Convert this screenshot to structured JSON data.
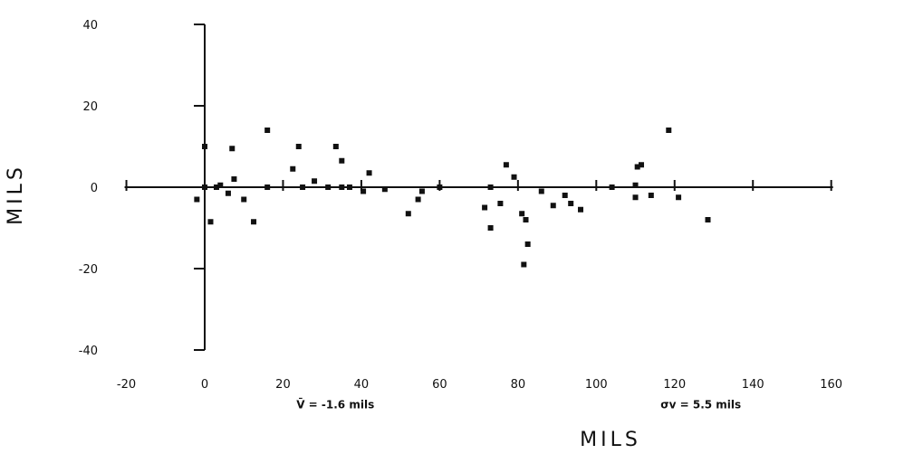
{
  "chart_data": {
    "type": "scatter",
    "xlabel": "MILS",
    "ylabel": "MILS",
    "xlim": [
      -20,
      160
    ],
    "ylim": [
      -40,
      40
    ],
    "xticks": [
      -20,
      0,
      20,
      40,
      60,
      80,
      100,
      120,
      140,
      160
    ],
    "xtick_labels": [
      "-20",
      "0",
      "20",
      "40",
      "60",
      "80",
      "100",
      "120",
      "140",
      "160"
    ],
    "yticks": [
      -40,
      -20,
      0,
      20,
      40
    ],
    "ytick_labels": [
      "-40",
      "-20",
      "0",
      "20",
      "40"
    ],
    "grid": false,
    "annotations": [
      {
        "text": "V̄ = -1.6 mils",
        "x": 10,
        "y": -47
      },
      {
        "text": "σv = 5.5 mils",
        "x": 103,
        "y": -47
      }
    ],
    "points": [
      {
        "x": -2,
        "y": -3
      },
      {
        "x": 0,
        "y": 10
      },
      {
        "x": 0,
        "y": 0
      },
      {
        "x": 1.5,
        "y": -8.5
      },
      {
        "x": 3,
        "y": 0
      },
      {
        "x": 4,
        "y": 0.5
      },
      {
        "x": 6,
        "y": -1.5
      },
      {
        "x": 7,
        "y": 9.5
      },
      {
        "x": 7.5,
        "y": 2
      },
      {
        "x": 10,
        "y": -3
      },
      {
        "x": 12.5,
        "y": -8.5
      },
      {
        "x": 16,
        "y": 14
      },
      {
        "x": 16,
        "y": 0
      },
      {
        "x": 22.5,
        "y": 4.5
      },
      {
        "x": 24,
        "y": 10
      },
      {
        "x": 25,
        "y": 0
      },
      {
        "x": 28,
        "y": 1.5
      },
      {
        "x": 31.5,
        "y": 0
      },
      {
        "x": 33.5,
        "y": 10
      },
      {
        "x": 35,
        "y": 6.5
      },
      {
        "x": 35,
        "y": 0
      },
      {
        "x": 37,
        "y": 0
      },
      {
        "x": 40.5,
        "y": -1
      },
      {
        "x": 42,
        "y": 3.5
      },
      {
        "x": 46,
        "y": -0.5
      },
      {
        "x": 52,
        "y": -6.5
      },
      {
        "x": 54.5,
        "y": -3
      },
      {
        "x": 55.5,
        "y": -1
      },
      {
        "x": 60,
        "y": 0
      },
      {
        "x": 71.5,
        "y": -5
      },
      {
        "x": 73,
        "y": -10
      },
      {
        "x": 73,
        "y": 0
      },
      {
        "x": 75.5,
        "y": -4
      },
      {
        "x": 77,
        "y": 5.5
      },
      {
        "x": 79,
        "y": 2.5
      },
      {
        "x": 81,
        "y": -6.5
      },
      {
        "x": 81.5,
        "y": -19
      },
      {
        "x": 82,
        "y": -8
      },
      {
        "x": 82.5,
        "y": -14
      },
      {
        "x": 86,
        "y": -1
      },
      {
        "x": 89,
        "y": -4.5
      },
      {
        "x": 92,
        "y": -2
      },
      {
        "x": 93.5,
        "y": -4
      },
      {
        "x": 96,
        "y": -5.5
      },
      {
        "x": 104,
        "y": 0
      },
      {
        "x": 110,
        "y": 0.5
      },
      {
        "x": 110,
        "y": -2.5
      },
      {
        "x": 110.5,
        "y": 5
      },
      {
        "x": 111.5,
        "y": 5.5
      },
      {
        "x": 114,
        "y": -2
      },
      {
        "x": 118.5,
        "y": 14
      },
      {
        "x": 121,
        "y": -2.5
      },
      {
        "x": 128.5,
        "y": -8
      }
    ]
  }
}
